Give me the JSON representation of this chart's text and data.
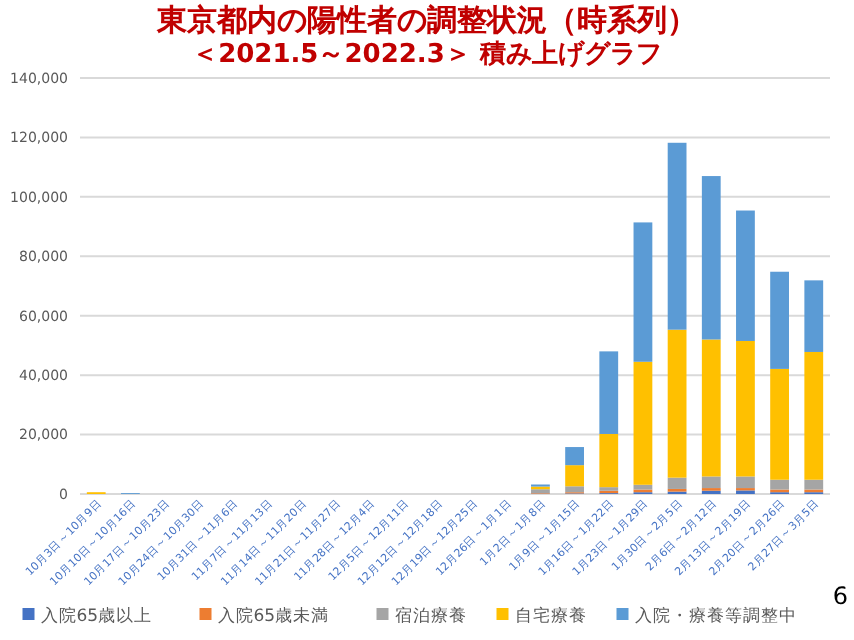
{
  "chart_data": {
    "type": "bar",
    "stacked": true,
    "title": "東京都内の陽性者の調整状況（時系列）",
    "subtitle": "＜2021.5～2022.3＞ 積み上げグラフ",
    "categories": [
      "10月3日～10月9日",
      "10月10日～10月16日",
      "10月17日～10月23日",
      "10月24日～10月30日",
      "10月31日～11月6日",
      "11月7日～11月13日",
      "11月14日～11月20日",
      "11月21日～11月27日",
      "11月28日～12月4日",
      "12月5日～12月11日",
      "12月12日～12月18日",
      "12月19日～12月25日",
      "12月26日～1月1日",
      "1月2日～1月8日",
      "1月9日～1月15日",
      "1月16日～1月22日",
      "1月23日～1月29日",
      "1月30日～2月5日",
      "2月6日～2月12日",
      "2月13日～2月19日",
      "2月20日～2月26日",
      "2月27日～3月5日"
    ],
    "series": [
      {
        "name": "入院65歳以上",
        "color": "#4472c4",
        "values": [
          0,
          0,
          0,
          0,
          0,
          0,
          0,
          0,
          0,
          0,
          0,
          0,
          0,
          100,
          200,
          300,
          600,
          800,
          1100,
          1200,
          600,
          600
        ]
      },
      {
        "name": "入院65歳未満",
        "color": "#ed7d31",
        "values": [
          0,
          0,
          0,
          0,
          0,
          0,
          0,
          0,
          0,
          0,
          0,
          0,
          0,
          200,
          400,
          800,
          900,
          900,
          900,
          800,
          900,
          900
        ]
      },
      {
        "name": "宿泊療養",
        "color": "#a5a5a5",
        "values": [
          0,
          0,
          0,
          0,
          0,
          0,
          0,
          0,
          0,
          0,
          0,
          0,
          0,
          1300,
          2000,
          1200,
          1600,
          3800,
          3900,
          3900,
          3300,
          3300
        ]
      },
      {
        "name": "自宅療養",
        "color": "#ffc000",
        "values": [
          600,
          0,
          0,
          0,
          0,
          0,
          0,
          0,
          0,
          0,
          0,
          0,
          0,
          900,
          7100,
          17900,
          41400,
          49800,
          46100,
          45600,
          37300,
          43000
        ]
      },
      {
        "name": "入院・療養等調整中",
        "color": "#5b9bd5",
        "values": [
          0,
          300,
          0,
          0,
          0,
          0,
          0,
          0,
          0,
          0,
          0,
          0,
          0,
          700,
          6100,
          27800,
          46900,
          62900,
          55000,
          43900,
          32700,
          24100
        ]
      }
    ],
    "ylim": [
      0,
      140000
    ],
    "yticks": [
      {
        "value": 0,
        "label": "0"
      },
      {
        "value": 20000,
        "label": "20,000"
      },
      {
        "value": 40000,
        "label": "40,000"
      },
      {
        "value": 60000,
        "label": "60,000"
      },
      {
        "value": 80000,
        "label": "80,000"
      },
      {
        "value": 100000,
        "label": "100,000"
      },
      {
        "value": 120000,
        "label": "120,000"
      },
      {
        "value": 140000,
        "label": "140,000"
      }
    ],
    "grid": "y",
    "legend": "bottom",
    "annotations": [
      "6"
    ]
  }
}
